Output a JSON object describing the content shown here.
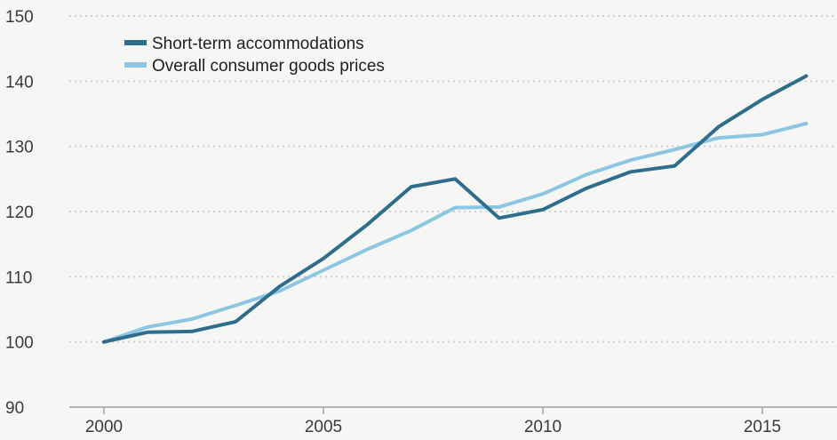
{
  "chart_data": {
    "type": "line",
    "title": "",
    "xlabel": "",
    "ylabel": "",
    "xlim": [
      1999.2,
      2016.2
    ],
    "ylim": [
      90,
      150
    ],
    "yticks": [
      90,
      100,
      110,
      120,
      130,
      140,
      150
    ],
    "xticks": [
      2000,
      2005,
      2010,
      2015
    ],
    "grid": "horizontal dotted",
    "legend_position": "top-left",
    "x": [
      2000,
      2001,
      2002,
      2003,
      2004,
      2005,
      2006,
      2007,
      2008,
      2009,
      2010,
      2011,
      2012,
      2013,
      2014,
      2015,
      2016
    ],
    "series": [
      {
        "name": "Short-term accommodations",
        "color": "#2e6e8c",
        "values": [
          100.0,
          101.5,
          101.6,
          103.1,
          108.5,
          112.8,
          118.0,
          123.8,
          125.0,
          119.0,
          120.3,
          123.6,
          126.1,
          127.0,
          133.0,
          137.2,
          140.8
        ]
      },
      {
        "name": "Overall consumer goods prices",
        "color": "#8cc6e2",
        "values": [
          100.0,
          102.3,
          103.5,
          105.6,
          107.8,
          111.0,
          114.2,
          117.1,
          120.6,
          120.7,
          122.7,
          125.7,
          127.9,
          129.5,
          131.3,
          131.8,
          133.5
        ]
      }
    ]
  }
}
